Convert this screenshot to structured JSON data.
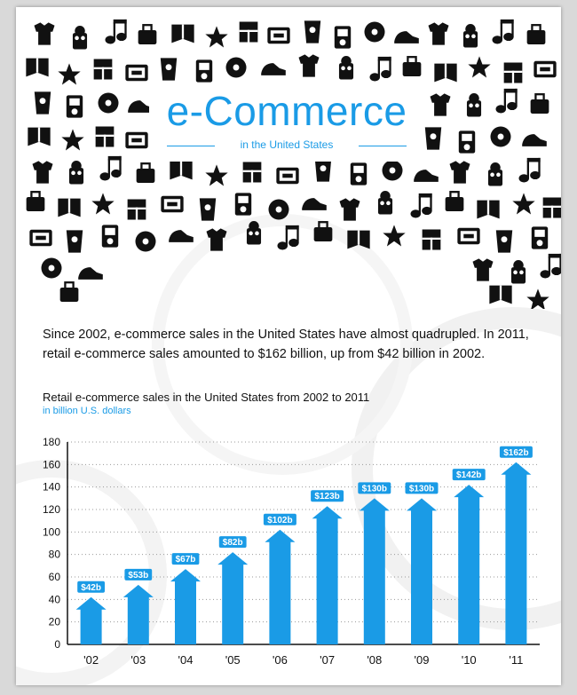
{
  "header": {
    "title": "e-Commerce",
    "subtitle": "in the United States"
  },
  "intro_text": "Since 2002, e-commerce sales in the United States have almost quadrupled. In 2011, retail e-commerce sales amounted to $162 billion, up from $42 billion in 2002.",
  "colors": {
    "accent": "#1a9be6",
    "label_bg": "#1a9be6",
    "icons": "#111111"
  },
  "chart_data": {
    "type": "bar",
    "title": "Retail e-commerce sales in the United States from 2002 to 2011",
    "subtitle": "in billion U.S. dollars",
    "categories": [
      "'02",
      "'03",
      "'04",
      "'05",
      "'06",
      "'07",
      "'08",
      "'09",
      "'10",
      "'11"
    ],
    "values": [
      42,
      53,
      67,
      82,
      102,
      123,
      130,
      130,
      142,
      162
    ],
    "data_labels": [
      "$42b",
      "$53b",
      "$67b",
      "$82b",
      "$102b",
      "$123b",
      "$130b",
      "$130b",
      "$142b",
      "$162b"
    ],
    "ylim": [
      0,
      180
    ],
    "yticks": [
      0,
      20,
      40,
      60,
      80,
      100,
      120,
      140,
      160,
      180
    ],
    "grid": true,
    "bar_style": "arrow"
  }
}
